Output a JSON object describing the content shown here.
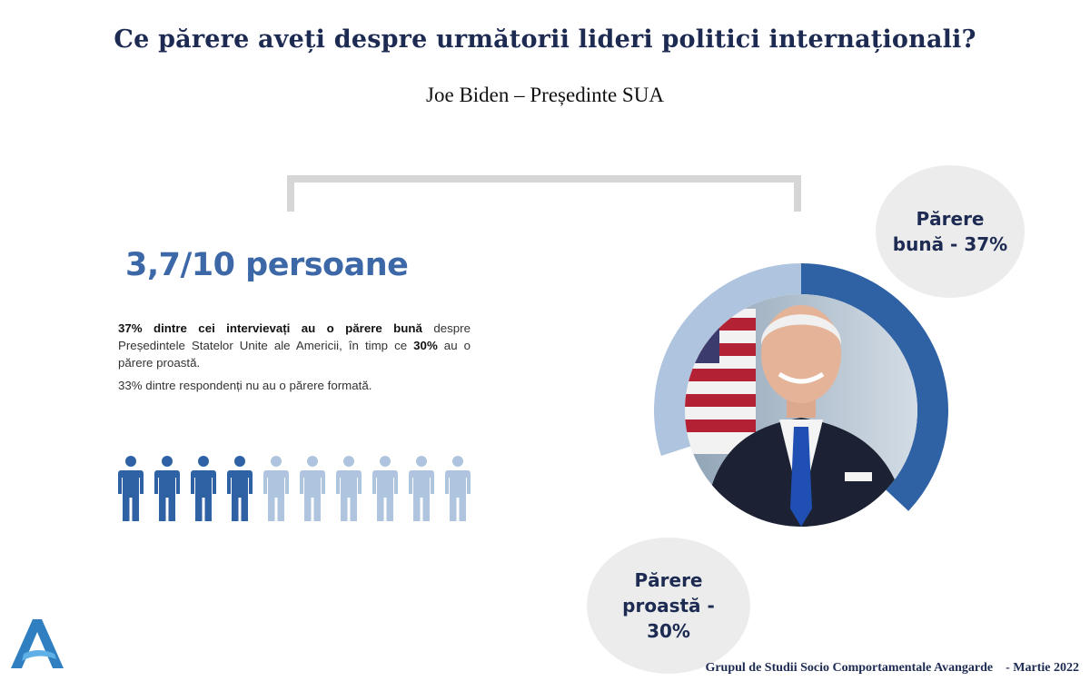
{
  "title": "Ce părere aveți despre următorii lideri politici internaționali?",
  "subtitle": "Joe Biden – Președinte SUA",
  "headline": "3,7/10 persoane",
  "description": {
    "p1_a": "37% dintre cei intervievați au o părere bună",
    "p1_b": " despre Președintele Statelor Unite ale Americii, în timp ce ",
    "p1_c": "30%",
    "p1_d": " au o părere proastă.",
    "p2": "33% dintre respondenți nu au o părere formată."
  },
  "people_icons": {
    "total": 10,
    "highlighted_fraction": 0.4,
    "color_highlighted": "#2e62a4",
    "color_other": "#afc4df"
  },
  "chart_data": {
    "type": "pie",
    "donut": true,
    "categories": [
      "Părere bună",
      "Părere proastă",
      "Nu au o părere formată"
    ],
    "values": [
      37,
      30,
      33
    ],
    "colors": [
      "#2e62a4",
      "#afc4df",
      "#ffffff"
    ],
    "unit": "%",
    "center_image": "portrait-photo",
    "labels": {
      "good": "Părere bună - 37%",
      "bad": "Părere proastă - 30%"
    }
  },
  "footer": "Grupul de Studii Socio Comportamentale Avangarde    - Martie 2022",
  "colors": {
    "title": "#1d2b52",
    "accent": "#3d68a8",
    "bubble": "#ececec"
  }
}
